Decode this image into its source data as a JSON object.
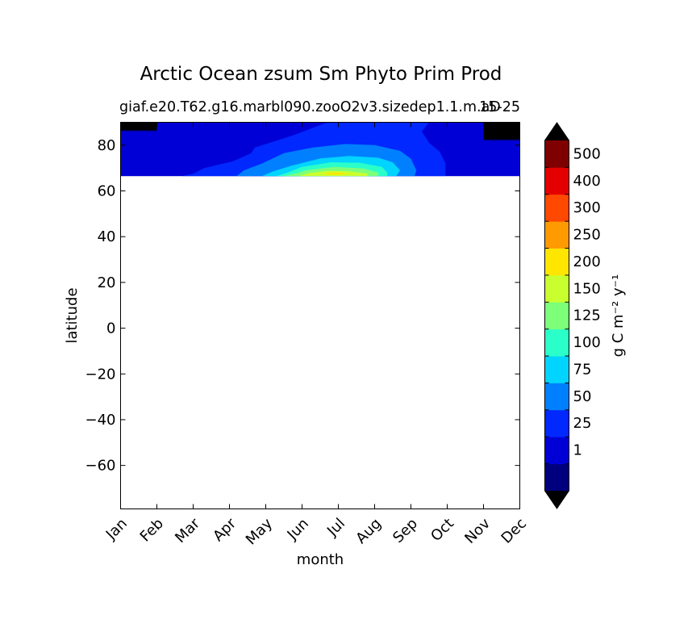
{
  "chart_data": {
    "type": "heatmap",
    "title": "Arctic Ocean zsum Sm Phyto Prim Prod",
    "subtitle_left": "giaf.e20.T62.g16.marbl090.zooO2v3.sizedep1.1.m.aD",
    "subtitle_right": "15-25",
    "xlabel": "month",
    "ylabel": "latitude",
    "x_categories": [
      "Jan",
      "Feb",
      "Mar",
      "Apr",
      "May",
      "Jun",
      "Jul",
      "Aug",
      "Sep",
      "Oct",
      "Nov",
      "Dec"
    ],
    "xlim": [
      0,
      11
    ],
    "ylim": [
      -79,
      90
    ],
    "yticks": [
      80,
      60,
      40,
      20,
      0,
      -20,
      -40,
      -60
    ],
    "ytick_labels": [
      "80",
      "60",
      "40",
      "20",
      "0",
      "−20",
      "−40",
      "−60"
    ],
    "data_lat_range": [
      66.5,
      90
    ],
    "colorbar": {
      "label": "g C m⁻² y⁻¹",
      "levels": [
        0,
        1,
        25,
        50,
        75,
        100,
        125,
        150,
        200,
        250,
        300,
        400,
        500,
        600
      ],
      "tick_labels": [
        "1",
        "25",
        "50",
        "75",
        "100",
        "125",
        "150",
        "200",
        "250",
        "300",
        "400",
        "500"
      ],
      "colors": [
        "#00007f",
        "#0000d6",
        "#0028ff",
        "#0080ff",
        "#00d4ff",
        "#2bffc9",
        "#7dff7a",
        "#c9ff2e",
        "#ffe600",
        "#ff9a00",
        "#ff4800",
        "#e40000",
        "#7f0000"
      ],
      "extend_low_color": "#000000",
      "extend_high_color": "#000000"
    },
    "contours": [
      {
        "level": 0,
        "points": [
          [
            0,
            66.5
          ],
          [
            11,
            66.5
          ],
          [
            11,
            90
          ],
          [
            0,
            90
          ]
        ]
      },
      {
        "level": 1,
        "points": [
          [
            0,
            66.5
          ],
          [
            11,
            66.5
          ],
          [
            11,
            90
          ],
          [
            0,
            90
          ]
        ]
      },
      {
        "level": 2,
        "points": [
          [
            1.7,
            66.5
          ],
          [
            8.95,
            66.5
          ],
          [
            8.95,
            72
          ],
          [
            8.8,
            77
          ],
          [
            8.5,
            81
          ],
          [
            8.3,
            86
          ],
          [
            8.5,
            90
          ],
          [
            5.7,
            90
          ],
          [
            5.2,
            87
          ],
          [
            4.7,
            84
          ],
          [
            4.1,
            81
          ],
          [
            3.7,
            79
          ],
          [
            3.6,
            76.5
          ],
          [
            3.1,
            73
          ],
          [
            2.3,
            70
          ],
          [
            2.0,
            67.5
          ]
        ]
      },
      {
        "level": 3,
        "points": [
          [
            3.2,
            66.5
          ],
          [
            8.1,
            66.5
          ],
          [
            8.15,
            69
          ],
          [
            8.0,
            74
          ],
          [
            7.7,
            77.5
          ],
          [
            7.0,
            80
          ],
          [
            6.2,
            80.5
          ],
          [
            5.3,
            79
          ],
          [
            4.5,
            76.5
          ],
          [
            3.9,
            72
          ],
          [
            3.4,
            69
          ]
        ]
      },
      {
        "level": 4,
        "points": [
          [
            3.9,
            66.5
          ],
          [
            7.6,
            66.5
          ],
          [
            7.7,
            69
          ],
          [
            7.5,
            72.5
          ],
          [
            7.1,
            74.5
          ],
          [
            6.3,
            75.3
          ],
          [
            5.5,
            74.2
          ],
          [
            4.7,
            71
          ],
          [
            4.2,
            68.5
          ]
        ]
      },
      {
        "level": 5,
        "points": [
          [
            4.3,
            66.5
          ],
          [
            7.35,
            66.5
          ],
          [
            7.35,
            68
          ],
          [
            7.2,
            70.5
          ],
          [
            6.6,
            72.3
          ],
          [
            5.8,
            72.5
          ],
          [
            5.0,
            70.5
          ],
          [
            4.6,
            68
          ]
        ]
      },
      {
        "level": 6,
        "points": [
          [
            4.5,
            66.5
          ],
          [
            7.1,
            66.5
          ],
          [
            7.1,
            68
          ],
          [
            6.7,
            69.8
          ],
          [
            5.9,
            70.5
          ],
          [
            5.1,
            69
          ],
          [
            4.8,
            67.5
          ]
        ]
      },
      {
        "level": 7,
        "points": [
          [
            4.9,
            66.5
          ],
          [
            6.8,
            66.5
          ],
          [
            6.8,
            67.6
          ],
          [
            6.3,
            68.6
          ],
          [
            5.7,
            68.8
          ],
          [
            5.2,
            67.8
          ]
        ]
      },
      {
        "level": 8,
        "points": [
          [
            5.6,
            67.2
          ],
          [
            6.0,
            67.0
          ],
          [
            6.3,
            67.6
          ],
          [
            6.0,
            68.1
          ],
          [
            5.7,
            68.0
          ]
        ]
      }
    ],
    "dark_patches": [
      {
        "color_level": 0,
        "points": [
          [
            0,
            86
          ],
          [
            1.0,
            86
          ],
          [
            1.0,
            90
          ],
          [
            0,
            90
          ]
        ]
      },
      {
        "color_level": 0,
        "points": [
          [
            10.0,
            82
          ],
          [
            11,
            82
          ],
          [
            11,
            90
          ],
          [
            10.0,
            90
          ]
        ]
      },
      {
        "color_level": -1,
        "points": [
          [
            0,
            86.5
          ],
          [
            1.0,
            86.5
          ],
          [
            1.0,
            90
          ],
          [
            0,
            90
          ]
        ]
      },
      {
        "color_level": -1,
        "points": [
          [
            10.0,
            82.5
          ],
          [
            11,
            82.5
          ],
          [
            11,
            90
          ],
          [
            10.0,
            90
          ]
        ]
      }
    ]
  }
}
